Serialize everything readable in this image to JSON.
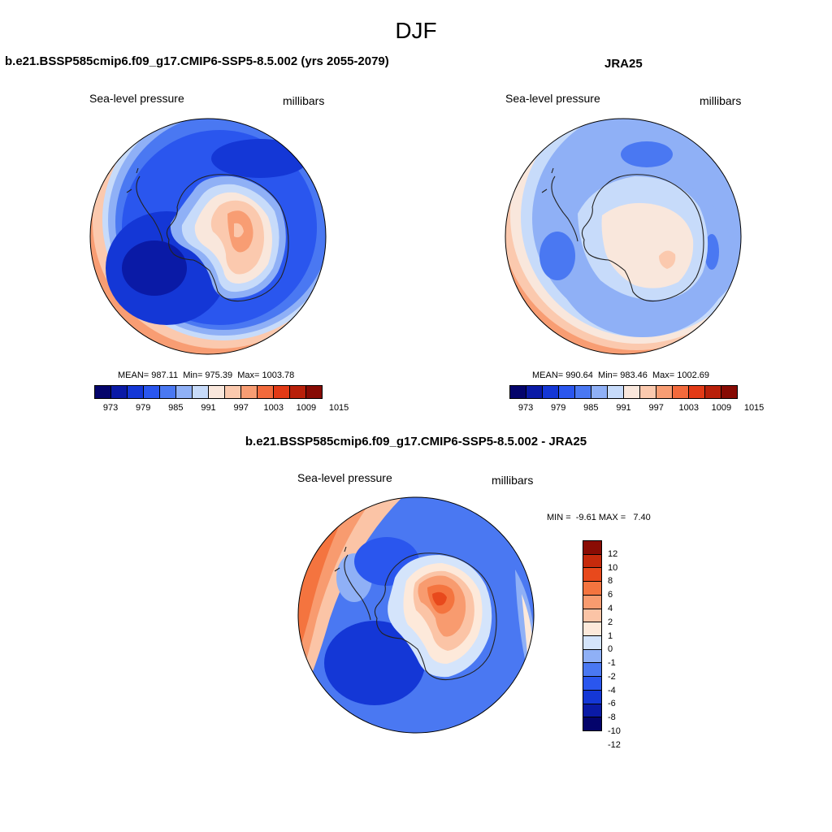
{
  "figure": {
    "title": "DJF"
  },
  "colors": {
    "abs_levels": [
      "#04046b",
      "#0a1aa6",
      "#1437d6",
      "#2a56ee",
      "#4a78f2",
      "#8fb0f6",
      "#c7dbfa",
      "#f9e7dc",
      "#fbc9ae",
      "#f89d73",
      "#f26a3c",
      "#e23a16",
      "#b8200a",
      "#870b04"
    ],
    "diff_levels": [
      "#04046b",
      "#0a1aa6",
      "#1437d6",
      "#2a56ee",
      "#4a78f2",
      "#8fb0f6",
      "#d4e4fb",
      "#fde9da",
      "#fbc4a6",
      "#f89b6f",
      "#f4743f",
      "#e8491c",
      "#c62a0c",
      "#8a0c04"
    ]
  },
  "panels": [
    {
      "title": "b.e21.BSSP585cmip6.f09_g17.CMIP6-SSP5-8.5.002 (yrs 2055-2079)",
      "variable": "Sea-level pressure",
      "units": "millibars",
      "mean": "MEAN= 987.11",
      "min": "Min= 975.39",
      "max": "Max= 1003.78",
      "colorbar_ticks": [
        "973",
        "979",
        "985",
        "991",
        "997",
        "1003",
        "1009",
        "1015"
      ]
    },
    {
      "title": "JRA25",
      "variable": "Sea-level pressure",
      "units": "millibars",
      "mean": "MEAN= 990.64",
      "min": "Min= 983.46",
      "max": "Max= 1002.69",
      "colorbar_ticks": [
        "973",
        "979",
        "985",
        "991",
        "997",
        "1003",
        "1009",
        "1015"
      ]
    },
    {
      "title": "b.e21.BSSP585cmip6.f09_g17.CMIP6-SSP5-8.5.002 - JRA25",
      "variable": "Sea-level pressure",
      "units": "millibars",
      "minmax": "MIN =  -9.61 MAX =   7.40",
      "colorbar_ticks": [
        "12",
        "10",
        "8",
        "6",
        "4",
        "2",
        "1",
        "0",
        "-1",
        "-2",
        "-4",
        "-6",
        "-8",
        "-10",
        "-12"
      ]
    }
  ]
}
